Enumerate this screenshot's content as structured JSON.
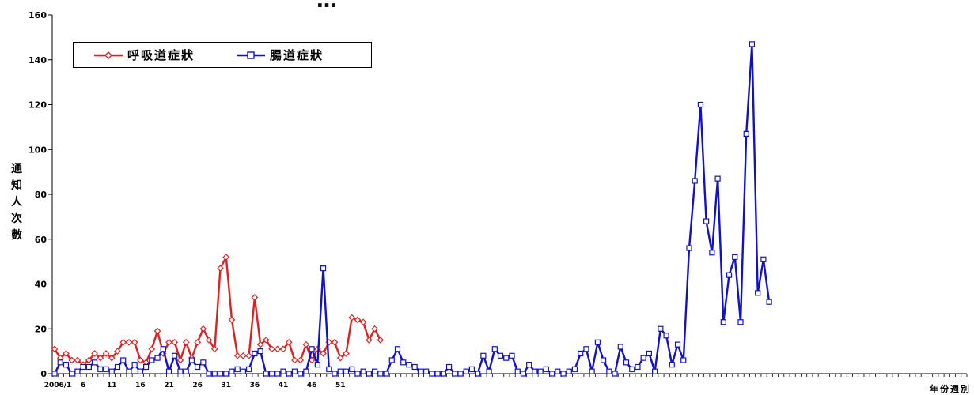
{
  "chart_data": {
    "type": "line",
    "title": "…",
    "ylabel": "通知人次數",
    "xlabel": "年份週別",
    "ylim": [
      0,
      160
    ],
    "yticks": [
      0,
      20,
      40,
      60,
      80,
      100,
      120,
      140,
      160
    ],
    "x_tick_labels": [
      "2006/1",
      "6",
      "11",
      "16",
      "21",
      "26",
      "31",
      "36",
      "41",
      "46",
      "51"
    ],
    "grid": false,
    "legend_position": "top-left",
    "series": [
      {
        "name": "呼吸道症狀",
        "color": "#e02020",
        "marker": "diamond",
        "values": [
          11,
          7,
          9,
          6,
          6,
          4,
          6,
          9,
          7,
          9,
          7,
          10,
          14,
          14,
          14,
          6,
          5,
          11,
          19,
          9,
          14,
          14,
          6,
          14,
          7,
          14,
          20,
          15,
          11,
          47,
          52,
          24,
          8,
          8,
          8,
          34,
          13,
          15,
          11,
          11,
          11,
          14,
          6,
          6,
          13,
          6,
          11,
          9,
          14,
          14,
          7,
          9,
          25,
          24,
          23,
          15,
          20,
          15
        ]
      },
      {
        "name": "腸道症狀",
        "color": "#1010d0",
        "marker": "square",
        "values": [
          0,
          5,
          4,
          0,
          1,
          3,
          3,
          5,
          2,
          2,
          1,
          3,
          6,
          1,
          4,
          1,
          3,
          6,
          7,
          11,
          1,
          8,
          1,
          1,
          6,
          3,
          5,
          0,
          0,
          0,
          0,
          1,
          2,
          1,
          2,
          9,
          10,
          0,
          0,
          0,
          1,
          0,
          1,
          0,
          1,
          11,
          4,
          47,
          2,
          0,
          1,
          1,
          2,
          0,
          1,
          0,
          1,
          0,
          0,
          6,
          11,
          5,
          4,
          3,
          1,
          1,
          0,
          0,
          0,
          3,
          0,
          0,
          1,
          2,
          0,
          8,
          1,
          11,
          8,
          7,
          8,
          1,
          0,
          4,
          1,
          1,
          2,
          0,
          1,
          0,
          1,
          2,
          9,
          11,
          1,
          14,
          6,
          1,
          0,
          12,
          5,
          2,
          3,
          7,
          9,
          1,
          20,
          17,
          4,
          13,
          6,
          56,
          86,
          120,
          68,
          54,
          87,
          23,
          44,
          52,
          23,
          107,
          147,
          36,
          51,
          32
        ]
      }
    ]
  }
}
